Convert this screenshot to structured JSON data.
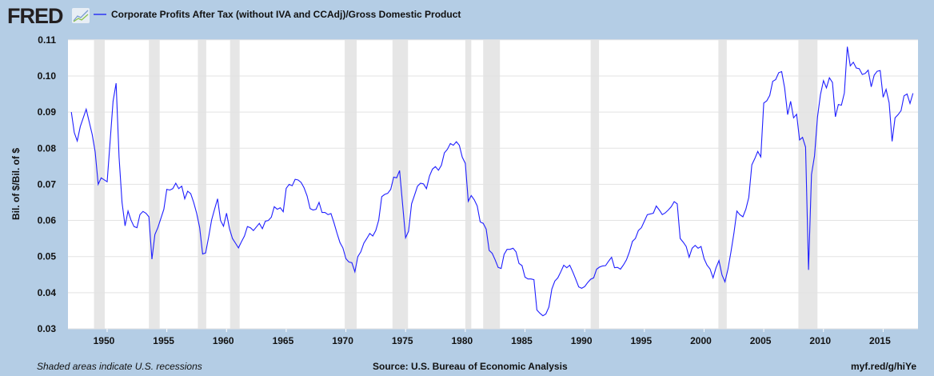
{
  "header": {
    "logo": "FRED",
    "logo_icon": "chart-line-icon"
  },
  "footer": {
    "note": "Shaded areas indicate U.S. recessions",
    "source": "Source: U.S. Bureau of Economic Analysis",
    "link": "myf.red/g/hiYe"
  },
  "colors": {
    "background": "#b4cde5",
    "plot": "#ffffff",
    "recession": "#e6e6e6",
    "grid": "#e3e3e3",
    "series": "#1f1fff"
  },
  "chart_data": {
    "type": "line",
    "title": "",
    "xlabel": "",
    "ylabel": "Bil. of $/Bil. of $",
    "xlim": [
      1946.72,
      2017.92
    ],
    "ylim": [
      0.03,
      0.11
    ],
    "grid": true,
    "legend": "top-left",
    "x_ticks": [
      "1950",
      "1955",
      "1960",
      "1965",
      "1970",
      "1975",
      "1980",
      "1985",
      "1990",
      "1995",
      "2000",
      "2005",
      "2010",
      "2015"
    ],
    "y_ticks": [
      "0.03",
      "0.04",
      "0.05",
      "0.06",
      "0.07",
      "0.08",
      "0.09",
      "0.10",
      "0.11"
    ],
    "recessions": [
      [
        1948.9,
        1949.8
      ],
      [
        1953.5,
        1954.4
      ],
      [
        1957.6,
        1958.3
      ],
      [
        1960.3,
        1961.1
      ],
      [
        1969.9,
        1970.9
      ],
      [
        1973.9,
        1975.2
      ],
      [
        1980.0,
        1980.5
      ],
      [
        1981.5,
        1982.9
      ],
      [
        1990.5,
        1991.2
      ],
      [
        2001.2,
        2001.9
      ],
      [
        2007.9,
        2009.5
      ]
    ],
    "series": [
      {
        "name": "Corporate Profits After Tax (without IVA and CCAdj)/Gross Domestic Product",
        "points": [
          [
            1947.0,
            0.09
          ],
          [
            1947.25,
            0.0843
          ],
          [
            1947.5,
            0.082
          ],
          [
            1947.75,
            0.086
          ],
          [
            1948.25,
            0.0908
          ],
          [
            1948.75,
            0.0838
          ],
          [
            1949.0,
            0.079
          ],
          [
            1949.25,
            0.07
          ],
          [
            1949.5,
            0.0718
          ],
          [
            1950.0,
            0.0707
          ],
          [
            1950.5,
            0.093
          ],
          [
            1950.75,
            0.098
          ],
          [
            1951.0,
            0.0775
          ],
          [
            1951.25,
            0.065
          ],
          [
            1951.5,
            0.0585
          ],
          [
            1951.75,
            0.0626
          ],
          [
            1952.0,
            0.0601
          ],
          [
            1952.25,
            0.0583
          ],
          [
            1952.5,
            0.058
          ],
          [
            1952.75,
            0.0616
          ],
          [
            1953.0,
            0.0625
          ],
          [
            1953.25,
            0.062
          ],
          [
            1953.5,
            0.061
          ],
          [
            1953.75,
            0.0493
          ],
          [
            1954.0,
            0.0561
          ],
          [
            1954.25,
            0.058
          ],
          [
            1954.75,
            0.0631
          ],
          [
            1955.0,
            0.0686
          ],
          [
            1955.25,
            0.0684
          ],
          [
            1955.5,
            0.0688
          ],
          [
            1955.75,
            0.0703
          ],
          [
            1956.0,
            0.0688
          ],
          [
            1956.25,
            0.0695
          ],
          [
            1956.5,
            0.066
          ],
          [
            1956.75,
            0.0681
          ],
          [
            1957.0,
            0.0674
          ],
          [
            1957.25,
            0.065
          ],
          [
            1957.5,
            0.062
          ],
          [
            1957.75,
            0.058
          ],
          [
            1958.0,
            0.0507
          ],
          [
            1958.25,
            0.051
          ],
          [
            1958.5,
            0.0554
          ],
          [
            1958.75,
            0.0601
          ],
          [
            1959.0,
            0.0631
          ],
          [
            1959.25,
            0.066
          ],
          [
            1959.5,
            0.06
          ],
          [
            1959.75,
            0.0584
          ],
          [
            1960.0,
            0.062
          ],
          [
            1960.25,
            0.0577
          ],
          [
            1960.5,
            0.055
          ],
          [
            1960.75,
            0.0537
          ],
          [
            1961.0,
            0.0524
          ],
          [
            1961.25,
            0.0541
          ],
          [
            1961.5,
            0.0557
          ],
          [
            1961.75,
            0.0583
          ],
          [
            1962.0,
            0.058
          ],
          [
            1962.25,
            0.0572
          ],
          [
            1962.75,
            0.0592
          ],
          [
            1963.0,
            0.0577
          ],
          [
            1963.25,
            0.0598
          ],
          [
            1963.5,
            0.06
          ],
          [
            1963.75,
            0.0609
          ],
          [
            1964.0,
            0.0638
          ],
          [
            1964.25,
            0.0631
          ],
          [
            1964.5,
            0.0635
          ],
          [
            1964.75,
            0.0624
          ],
          [
            1965.0,
            0.0689
          ],
          [
            1965.25,
            0.07
          ],
          [
            1965.5,
            0.0696
          ],
          [
            1965.75,
            0.0714
          ],
          [
            1966.0,
            0.0712
          ],
          [
            1966.25,
            0.0705
          ],
          [
            1966.5,
            0.069
          ],
          [
            1966.75,
            0.0668
          ],
          [
            1967.0,
            0.0633
          ],
          [
            1967.25,
            0.0629
          ],
          [
            1967.5,
            0.0631
          ],
          [
            1967.75,
            0.065
          ],
          [
            1968.0,
            0.0622
          ],
          [
            1968.25,
            0.0622
          ],
          [
            1968.5,
            0.0616
          ],
          [
            1968.75,
            0.0619
          ],
          [
            1969.0,
            0.0594
          ],
          [
            1969.25,
            0.0565
          ],
          [
            1969.5,
            0.0539
          ],
          [
            1969.75,
            0.0524
          ],
          [
            1970.0,
            0.0494
          ],
          [
            1970.25,
            0.0485
          ],
          [
            1970.5,
            0.0483
          ],
          [
            1970.75,
            0.0458
          ],
          [
            1971.0,
            0.05
          ],
          [
            1971.25,
            0.0513
          ],
          [
            1971.5,
            0.0537
          ],
          [
            1971.75,
            0.055
          ],
          [
            1972.0,
            0.0564
          ],
          [
            1972.25,
            0.0557
          ],
          [
            1972.5,
            0.0572
          ],
          [
            1972.75,
            0.0601
          ],
          [
            1973.0,
            0.0666
          ],
          [
            1973.25,
            0.0672
          ],
          [
            1973.5,
            0.0675
          ],
          [
            1973.75,
            0.0686
          ],
          [
            1974.0,
            0.072
          ],
          [
            1974.25,
            0.0718
          ],
          [
            1974.5,
            0.0738
          ],
          [
            1975.0,
            0.0552
          ],
          [
            1975.25,
            0.057
          ],
          [
            1975.5,
            0.0646
          ],
          [
            1975.75,
            0.067
          ],
          [
            1976.0,
            0.0695
          ],
          [
            1976.25,
            0.0703
          ],
          [
            1976.5,
            0.0701
          ],
          [
            1976.75,
            0.0688
          ],
          [
            1977.0,
            0.0723
          ],
          [
            1977.25,
            0.0742
          ],
          [
            1977.5,
            0.0749
          ],
          [
            1977.75,
            0.0739
          ],
          [
            1978.0,
            0.0753
          ],
          [
            1978.25,
            0.0787
          ],
          [
            1978.5,
            0.0797
          ],
          [
            1978.75,
            0.0813
          ],
          [
            1979.0,
            0.0808
          ],
          [
            1979.25,
            0.0818
          ],
          [
            1979.5,
            0.0808
          ],
          [
            1979.75,
            0.0775
          ],
          [
            1980.0,
            0.0758
          ],
          [
            1980.25,
            0.0653
          ],
          [
            1980.5,
            0.0669
          ],
          [
            1980.75,
            0.0657
          ],
          [
            1981.0,
            0.064
          ],
          [
            1981.25,
            0.0596
          ],
          [
            1981.5,
            0.0592
          ],
          [
            1981.75,
            0.0576
          ],
          [
            1982.0,
            0.0517
          ],
          [
            1982.25,
            0.0509
          ],
          [
            1982.5,
            0.0491
          ],
          [
            1982.75,
            0.047
          ],
          [
            1983.0,
            0.0467
          ],
          [
            1983.25,
            0.0506
          ],
          [
            1983.5,
            0.052
          ],
          [
            1983.75,
            0.052
          ],
          [
            1984.0,
            0.0523
          ],
          [
            1984.25,
            0.0513
          ],
          [
            1984.5,
            0.0481
          ],
          [
            1984.75,
            0.0475
          ],
          [
            1985.0,
            0.0443
          ],
          [
            1985.25,
            0.0438
          ],
          [
            1985.5,
            0.0438
          ],
          [
            1985.75,
            0.0436
          ],
          [
            1986.0,
            0.0352
          ],
          [
            1986.25,
            0.0343
          ],
          [
            1986.5,
            0.0336
          ],
          [
            1986.75,
            0.0341
          ],
          [
            1987.0,
            0.036
          ],
          [
            1987.25,
            0.041
          ],
          [
            1987.5,
            0.0432
          ],
          [
            1987.75,
            0.0441
          ],
          [
            1988.0,
            0.0458
          ],
          [
            1988.25,
            0.0476
          ],
          [
            1988.5,
            0.0469
          ],
          [
            1988.75,
            0.0476
          ],
          [
            1989.0,
            0.0458
          ],
          [
            1989.25,
            0.0437
          ],
          [
            1989.5,
            0.0416
          ],
          [
            1989.75,
            0.0412
          ],
          [
            1990.0,
            0.0417
          ],
          [
            1990.25,
            0.0428
          ],
          [
            1990.5,
            0.0437
          ],
          [
            1990.75,
            0.0441
          ],
          [
            1991.0,
            0.0465
          ],
          [
            1991.25,
            0.0471
          ],
          [
            1991.5,
            0.0474
          ],
          [
            1991.75,
            0.0475
          ],
          [
            1992.0,
            0.0487
          ],
          [
            1992.25,
            0.0498
          ],
          [
            1992.5,
            0.0469
          ],
          [
            1992.75,
            0.047
          ],
          [
            1993.0,
            0.0465
          ],
          [
            1993.25,
            0.0477
          ],
          [
            1993.5,
            0.0491
          ],
          [
            1993.75,
            0.0513
          ],
          [
            1994.0,
            0.0542
          ],
          [
            1994.25,
            0.055
          ],
          [
            1994.5,
            0.0572
          ],
          [
            1994.75,
            0.058
          ],
          [
            1995.0,
            0.0598
          ],
          [
            1995.25,
            0.0616
          ],
          [
            1995.75,
            0.062
          ],
          [
            1996.0,
            0.064
          ],
          [
            1996.25,
            0.0629
          ],
          [
            1996.5,
            0.0616
          ],
          [
            1996.75,
            0.0621
          ],
          [
            1997.0,
            0.0629
          ],
          [
            1997.25,
            0.0638
          ],
          [
            1997.5,
            0.0652
          ],
          [
            1997.75,
            0.0646
          ],
          [
            1998.0,
            0.055
          ],
          [
            1998.25,
            0.054
          ],
          [
            1998.5,
            0.0528
          ],
          [
            1998.75,
            0.0498
          ],
          [
            1999.0,
            0.0523
          ],
          [
            1999.25,
            0.0531
          ],
          [
            1999.5,
            0.0523
          ],
          [
            1999.75,
            0.0528
          ],
          [
            2000.0,
            0.0494
          ],
          [
            2000.25,
            0.0476
          ],
          [
            2000.5,
            0.0466
          ],
          [
            2000.75,
            0.0441
          ],
          [
            2001.0,
            0.0469
          ],
          [
            2001.25,
            0.0489
          ],
          [
            2001.5,
            0.0449
          ],
          [
            2001.75,
            0.043
          ],
          [
            2002.0,
            0.0465
          ],
          [
            2002.25,
            0.0513
          ],
          [
            2002.5,
            0.0565
          ],
          [
            2002.75,
            0.0626
          ],
          [
            2003.0,
            0.0616
          ],
          [
            2003.25,
            0.061
          ],
          [
            2003.5,
            0.0631
          ],
          [
            2003.75,
            0.0664
          ],
          [
            2004.0,
            0.0754
          ],
          [
            2004.25,
            0.0771
          ],
          [
            2004.5,
            0.0791
          ],
          [
            2004.75,
            0.0776
          ],
          [
            2005.0,
            0.0925
          ],
          [
            2005.25,
            0.0931
          ],
          [
            2005.5,
            0.0946
          ],
          [
            2005.75,
            0.0985
          ],
          [
            2006.0,
            0.099
          ],
          [
            2006.25,
            0.1009
          ],
          [
            2006.5,
            0.1012
          ],
          [
            2006.75,
            0.0967
          ],
          [
            2007.0,
            0.0893
          ],
          [
            2007.25,
            0.093
          ],
          [
            2007.5,
            0.0884
          ],
          [
            2007.75,
            0.0894
          ],
          [
            2008.0,
            0.0823
          ],
          [
            2008.25,
            0.083
          ],
          [
            2008.5,
            0.0803
          ],
          [
            2008.75,
            0.0463
          ],
          [
            2009.0,
            0.0727
          ],
          [
            2009.25,
            0.0779
          ],
          [
            2009.5,
            0.0886
          ],
          [
            2009.75,
            0.0948
          ],
          [
            2010.0,
            0.0987
          ],
          [
            2010.25,
            0.0967
          ],
          [
            2010.5,
            0.0995
          ],
          [
            2010.75,
            0.0982
          ],
          [
            2011.0,
            0.0887
          ],
          [
            2011.25,
            0.0921
          ],
          [
            2011.5,
            0.0919
          ],
          [
            2011.75,
            0.0953
          ],
          [
            2012.0,
            0.1081
          ],
          [
            2012.25,
            0.1028
          ],
          [
            2012.5,
            0.1038
          ],
          [
            2012.75,
            0.1022
          ],
          [
            2013.0,
            0.102
          ],
          [
            2013.25,
            0.1004
          ],
          [
            2013.5,
            0.1007
          ],
          [
            2013.75,
            0.1016
          ],
          [
            2014.0,
            0.097
          ],
          [
            2014.25,
            0.1002
          ],
          [
            2014.5,
            0.1013
          ],
          [
            2014.75,
            0.1015
          ],
          [
            2015.0,
            0.0941
          ],
          [
            2015.25,
            0.0963
          ],
          [
            2015.5,
            0.0926
          ],
          [
            2015.75,
            0.0819
          ],
          [
            2016.0,
            0.0884
          ],
          [
            2016.25,
            0.0893
          ],
          [
            2016.5,
            0.0904
          ],
          [
            2016.75,
            0.0945
          ],
          [
            2017.0,
            0.095
          ],
          [
            2017.25,
            0.0924
          ],
          [
            2017.5,
            0.0952
          ]
        ]
      }
    ]
  }
}
